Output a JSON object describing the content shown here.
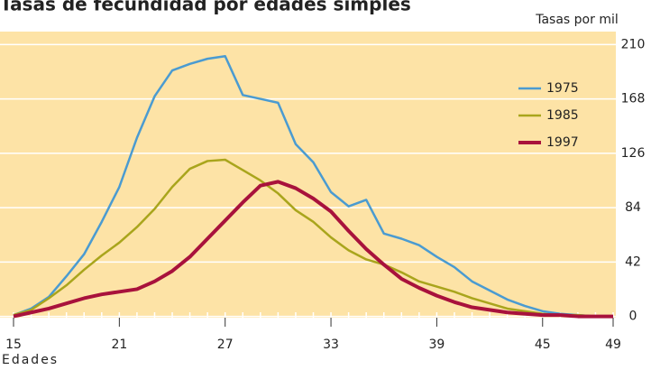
{
  "chart_data": {
    "type": "line",
    "title": "Tasas de fecundidad por edades simples",
    "y_label": "Tasas por mil",
    "x_label": "Edades",
    "x": [
      15,
      16,
      17,
      18,
      19,
      20,
      21,
      22,
      23,
      24,
      25,
      26,
      27,
      28,
      29,
      30,
      31,
      32,
      33,
      34,
      35,
      36,
      37,
      38,
      39,
      40,
      41,
      42,
      43,
      44,
      45,
      46,
      47,
      48,
      49
    ],
    "series": [
      {
        "name": "1975",
        "color": "#4a9bd1",
        "values": [
          1,
          6,
          15,
          31,
          48,
          73,
          100,
          138,
          170,
          190,
          195,
          199,
          201,
          171,
          168,
          165,
          133,
          119,
          96,
          85,
          90,
          64,
          60,
          55,
          46,
          38,
          27,
          20,
          13,
          8,
          4,
          2,
          1,
          0,
          0
        ]
      },
      {
        "name": "1985",
        "color": "#a9a51c",
        "values": [
          1,
          5,
          14,
          24,
          36,
          47,
          57,
          69,
          83,
          100,
          114,
          120,
          121,
          113,
          105,
          95,
          82,
          73,
          61,
          51,
          44,
          40,
          34,
          27,
          23,
          19,
          14,
          10,
          6,
          4,
          2,
          1,
          1,
          0,
          0
        ]
      },
      {
        "name": "1997",
        "color": "#a8123c",
        "values": [
          0,
          3,
          6,
          10,
          14,
          17,
          19,
          21,
          27,
          35,
          46,
          60,
          74,
          88,
          101,
          104,
          99,
          91,
          81,
          66,
          52,
          40,
          29,
          22,
          16,
          11,
          7,
          5,
          3,
          2,
          1,
          1,
          0,
          0,
          0
        ]
      }
    ],
    "xlim": [
      15,
      49
    ],
    "xticks": [
      15,
      21,
      27,
      33,
      39,
      45,
      49
    ],
    "ylim": [
      -1,
      220
    ],
    "yticks": [
      0,
      42,
      84,
      126,
      168,
      210
    ],
    "grid": true,
    "legend": "right"
  }
}
